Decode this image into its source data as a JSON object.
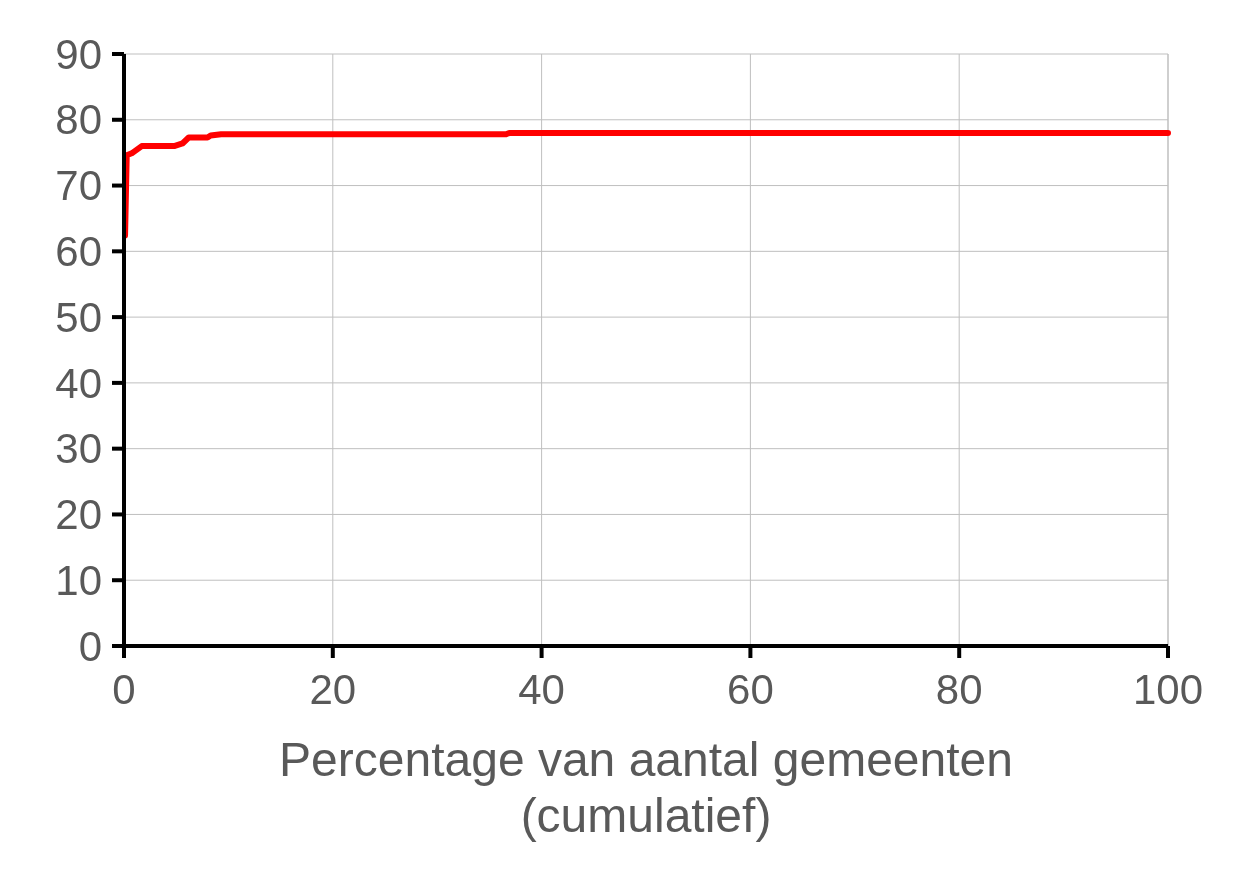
{
  "chart_data": {
    "type": "line",
    "xlabel": "Percentage van aantal gemeenten (cumulatief)",
    "series": [
      {
        "color": "#ff0000",
        "x": [
          0.1,
          0.26,
          0.74,
          1.7,
          4.8,
          5.6,
          6.2,
          8.0,
          8.3,
          9.3,
          36.6,
          36.9,
          100
        ],
        "values": [
          62.4,
          74.6,
          74.9,
          76.0,
          76.0,
          76.4,
          77.3,
          77.3,
          77.6,
          77.8,
          77.8,
          78.0,
          78.0
        ]
      }
    ],
    "xlim": [
      0,
      100
    ],
    "xticks": [
      0,
      20,
      40,
      60,
      80,
      100
    ],
    "ylim": [
      0,
      90
    ],
    "yticks": [
      0,
      10,
      20,
      30,
      40,
      50,
      60,
      70,
      80,
      90
    ],
    "grid": true,
    "marker": "none",
    "line_style": "solid"
  }
}
